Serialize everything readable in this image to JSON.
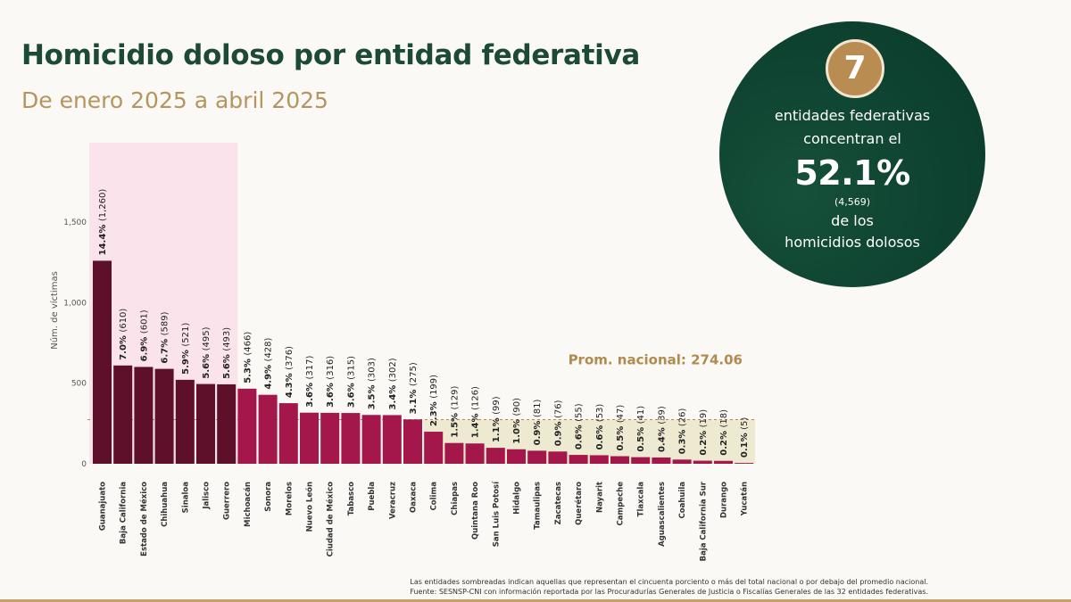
{
  "header": {
    "title": "Homicidio doloso por entidad federativa",
    "subtitle": "De enero 2025 a abril 2025"
  },
  "callout": {
    "number": "7",
    "line1": "entidades federativas",
    "line2": "concentran el",
    "percent": "52.1%",
    "count": "(4,569)",
    "line3": "de los",
    "line4": "homicidios dolosos"
  },
  "footnotes": {
    "line1": "Las entidades sombreadas indican aquellas que representan el cincuenta porciento o más del total nacional o por debajo del promedio nacional.",
    "line2": "Fuente: SESNSP-CNI con información reportada por las Procuradurías Generales de Justicia o Fiscalías Generales de las 32 entidades federativas."
  },
  "colors": {
    "dark_bar": "#5e0f2a",
    "light_bar": "#a3174a",
    "top_shade": "#fbe3ec",
    "avg_shade": "#eeead2",
    "avg_line": "#b18a4e",
    "title": "#1d4a35",
    "gold": "#b5955f"
  },
  "chart_data": {
    "type": "bar",
    "ylabel": "Núm. de víctimas",
    "ylim": [
      0,
      1500
    ],
    "yticks": [
      0,
      500,
      1000,
      1500
    ],
    "ytick_labels": [
      "0",
      "500",
      "1,000",
      "1,500"
    ],
    "national_average": 274.06,
    "average_label": "Prom. nacional: 274.06",
    "top_group_count": 7,
    "categories": [
      "Guanajuato",
      "Baja California",
      "Estado de México",
      "Chihuahua",
      "Sinaloa",
      "Jalisco",
      "Guerrero",
      "Michoacán",
      "Sonora",
      "Morelos",
      "Nuevo León",
      "Ciudad de México",
      "Tabasco",
      "Puebla",
      "Veracruz",
      "Oaxaca",
      "Colima",
      "Chiapas",
      "Quintana Roo",
      "San Luis Potosí",
      "Hidalgo",
      "Tamaulipas",
      "Zacatecas",
      "Querétaro",
      "Nayarit",
      "Campeche",
      "Tlaxcala",
      "Aguascalientes",
      "Coahuila",
      "Baja California Sur",
      "Durango",
      "Yucatán"
    ],
    "values": [
      1260,
      610,
      601,
      589,
      521,
      495,
      493,
      466,
      428,
      376,
      317,
      316,
      315,
      303,
      302,
      275,
      199,
      129,
      126,
      99,
      90,
      81,
      76,
      55,
      53,
      47,
      41,
      39,
      26,
      19,
      18,
      5
    ],
    "percent_labels": [
      "14.4%",
      "7.0%",
      "6.9%",
      "6.7%",
      "5.9%",
      "5.6%",
      "5.6%",
      "5.3%",
      "4.9%",
      "4.3%",
      "3.6%",
      "3.6%",
      "3.6%",
      "3.5%",
      "3.4%",
      "3.1%",
      "2.3%",
      "1.5%",
      "1.4%",
      "1.1%",
      "1.0%",
      "0.9%",
      "0.9%",
      "0.6%",
      "0.6%",
      "0.5%",
      "0.5%",
      "0.4%",
      "0.3%",
      "0.2%",
      "0.2%",
      "0.1%"
    ],
    "value_labels": [
      "(1,260)",
      "(610)",
      "(601)",
      "(589)",
      "(521)",
      "(495)",
      "(493)",
      "(466)",
      "(428)",
      "(376)",
      "(317)",
      "(316)",
      "(315)",
      "(303)",
      "(302)",
      "(275)",
      "(199)",
      "(129)",
      "(126)",
      "(99)",
      "(90)",
      "(81)",
      "(76)",
      "(55)",
      "(53)",
      "(47)",
      "(41)",
      "(39)",
      "(26)",
      "(19)",
      "(18)",
      "(5)"
    ]
  }
}
